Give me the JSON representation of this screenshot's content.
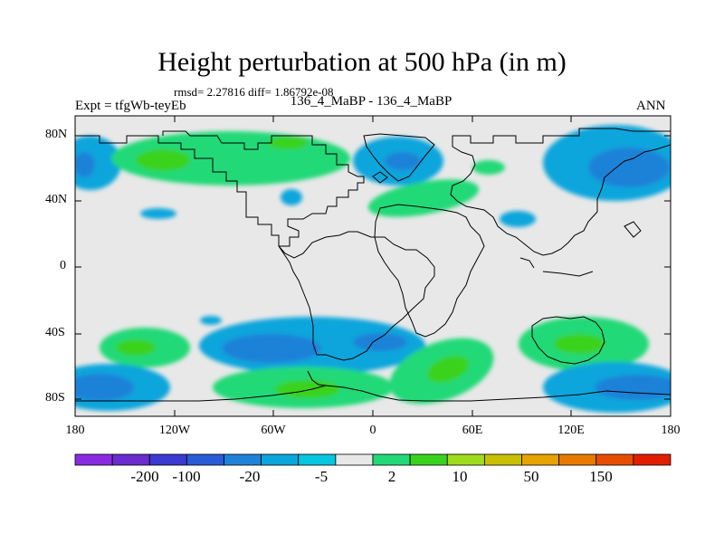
{
  "title": "Height perturbation at 500 hPa (in m)",
  "stats": "rmsd= 2.27816 diff= 1.86792e-08",
  "expt_label": "Expt = tfgWb-teyEb",
  "center_label": "136_4_MaBP - 136_4_MaBP",
  "season": "ANN",
  "lat_ticks": [
    "80N",
    "40N",
    "0",
    "40S",
    "80S"
  ],
  "lon_ticks": [
    "180",
    "120W",
    "60W",
    "0",
    "60E",
    "120E",
    "180"
  ],
  "colorbar": {
    "colors": [
      "#8a2be2",
      "#6a2ccd",
      "#3a39d0",
      "#2a5bd6",
      "#1f82d8",
      "#0aa6dc",
      "#06c6e0",
      "#e8e8e8",
      "#22d977",
      "#3ad21e",
      "#a0dc1e",
      "#c8c000",
      "#e7a300",
      "#e87a00",
      "#e64d00",
      "#e11f00"
    ],
    "labels": [
      "-200",
      "-100",
      "-20",
      "-5",
      "2",
      "10",
      "50",
      "150"
    ]
  },
  "map_colors": {
    "background": "#e8e8e8",
    "light_blue": "#0aa6dc",
    "mid_blue": "#1f82d8",
    "green": "#22d977",
    "mid_green": "#3ad21e"
  }
}
